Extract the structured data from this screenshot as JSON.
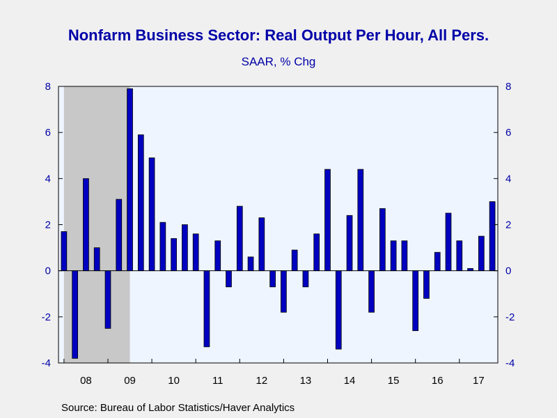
{
  "chart_data": {
    "type": "bar",
    "title": "Nonfarm Business Sector: Real Output Per Hour, All Pers.",
    "subtitle": "SAAR, % Chg",
    "source": "Source:  Bureau of Labor Statistics/Haver Analytics",
    "ylim": [
      -4,
      8
    ],
    "yticks": [
      8,
      6,
      4,
      2,
      0,
      -2,
      -4
    ],
    "year_labels": [
      "08",
      "09",
      "10",
      "11",
      "12",
      "13",
      "14",
      "15",
      "16",
      "17"
    ],
    "recession_shading": {
      "from_index": 0.5,
      "to_index": 6.5
    },
    "values": [
      1.7,
      -3.8,
      4.0,
      1.0,
      -2.5,
      3.1,
      7.9,
      5.9,
      4.9,
      2.1,
      1.4,
      2.0,
      1.6,
      -3.3,
      1.3,
      -0.7,
      2.8,
      0.6,
      2.3,
      -0.7,
      -1.8,
      0.9,
      -0.7,
      1.6,
      4.4,
      -3.4,
      2.4,
      4.4,
      -1.8,
      2.7,
      1.3,
      1.3,
      -2.6,
      -1.2,
      0.8,
      2.5,
      1.3,
      0.1,
      1.5,
      3.0
    ],
    "colors": {
      "bar": "#0000c0",
      "plot_bg": "#eef5ff",
      "recession": "#c8c8c8",
      "axis": "#0000a8",
      "text": "#0000a8"
    }
  }
}
